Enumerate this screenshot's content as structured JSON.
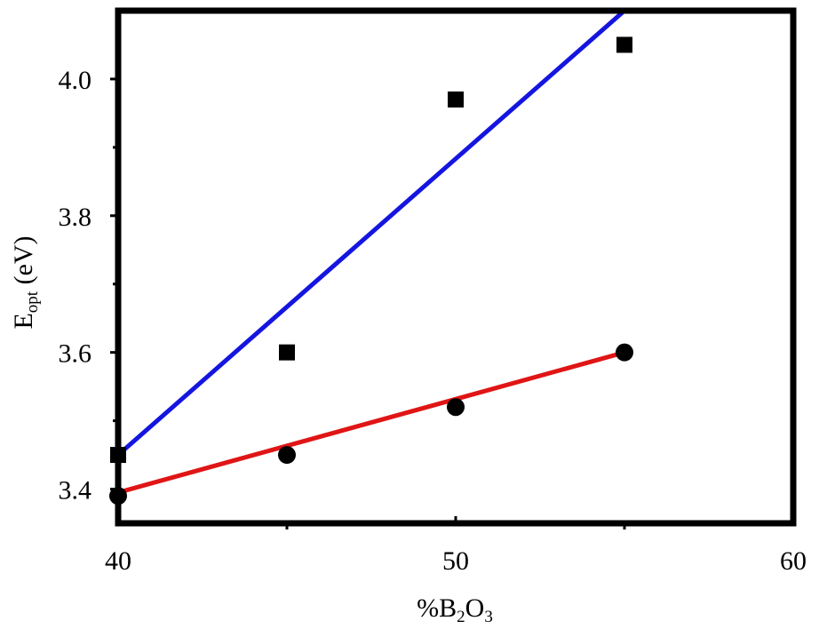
{
  "chart_data": {
    "type": "scatter",
    "xlabel": {
      "prefix": "%B",
      "sub1": "2",
      "mid": "O",
      "sub2": "3"
    },
    "ylabel": {
      "main": "E",
      "sub": "opt",
      "suffix": " (eV)"
    },
    "xlim": [
      40,
      60
    ],
    "ylim": [
      3.35,
      4.1
    ],
    "x_major_ticks": [
      40,
      50,
      60
    ],
    "x_minor_ticks": [
      45,
      55
    ],
    "x_tick_labels": [
      "40",
      "50",
      "60"
    ],
    "y_major_ticks": [
      3.4,
      3.6,
      3.8,
      4.0
    ],
    "y_minor_ticks": [
      3.5,
      3.7,
      3.9
    ],
    "y_tick_labels": [
      "3.4",
      "3.6",
      "3.8",
      "4.0"
    ],
    "grid": false,
    "series": [
      {
        "marker": "square",
        "x": [
          40,
          45,
          50,
          55
        ],
        "y": [
          3.45,
          3.6,
          3.97,
          4.05
        ],
        "fit_color": "#1515e0",
        "fit_line": {
          "x": [
            40,
            55
          ],
          "y": [
            3.45,
            4.1
          ]
        }
      },
      {
        "marker": "circle",
        "x": [
          40,
          45,
          50,
          55
        ],
        "y": [
          3.39,
          3.45,
          3.52,
          3.6
        ],
        "fit_color": "#e01515",
        "fit_line": {
          "x": [
            40,
            55
          ],
          "y": [
            3.395,
            3.6
          ]
        }
      }
    ]
  }
}
